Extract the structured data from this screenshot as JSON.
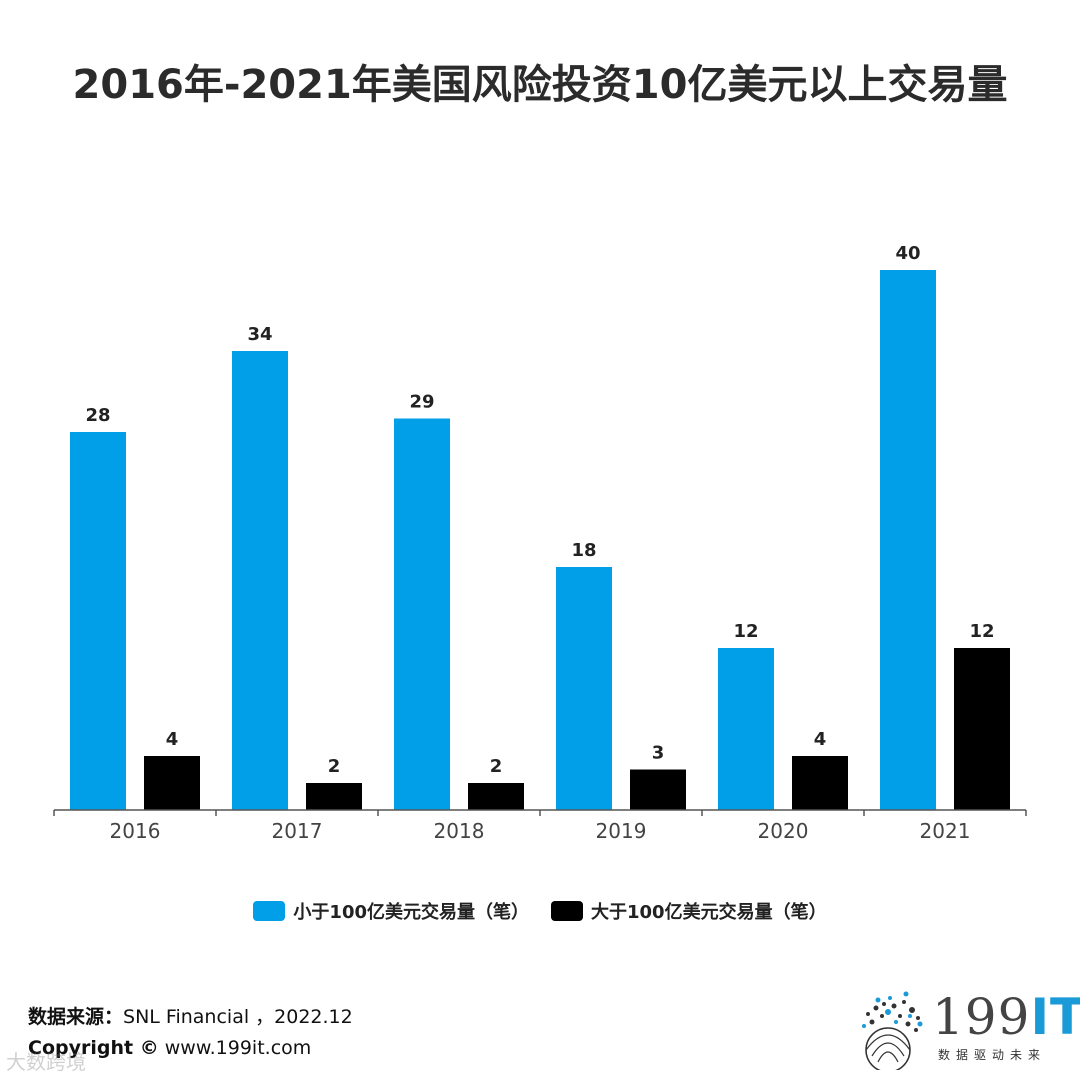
{
  "title": "2016年-2021年美国风险投资10亿美元以上交易量",
  "chart_data": {
    "type": "bar",
    "categories": [
      "2016",
      "2017",
      "2018",
      "2019",
      "2020",
      "2021"
    ],
    "series": [
      {
        "name": "小于100亿美元交易量（笔）",
        "color": "#009fe8",
        "values": [
          28,
          34,
          29,
          18,
          12,
          40
        ]
      },
      {
        "name": "大于100亿美元交易量（笔）",
        "color": "#000000",
        "values": [
          4,
          2,
          2,
          3,
          4,
          12
        ]
      }
    ],
    "ylim": [
      0,
      40
    ],
    "grid": false,
    "legend_position": "bottom"
  },
  "footer": {
    "source_label": "数据来源：",
    "source_text": "SNL Financial ，2022.12",
    "copyright_label": "Copyright ©",
    "copyright_text": " www.199it.com",
    "watermark": "大数跨境"
  },
  "logo": {
    "text_main": "199",
    "text_it": "IT",
    "subtitle": "数据驱动未来"
  }
}
